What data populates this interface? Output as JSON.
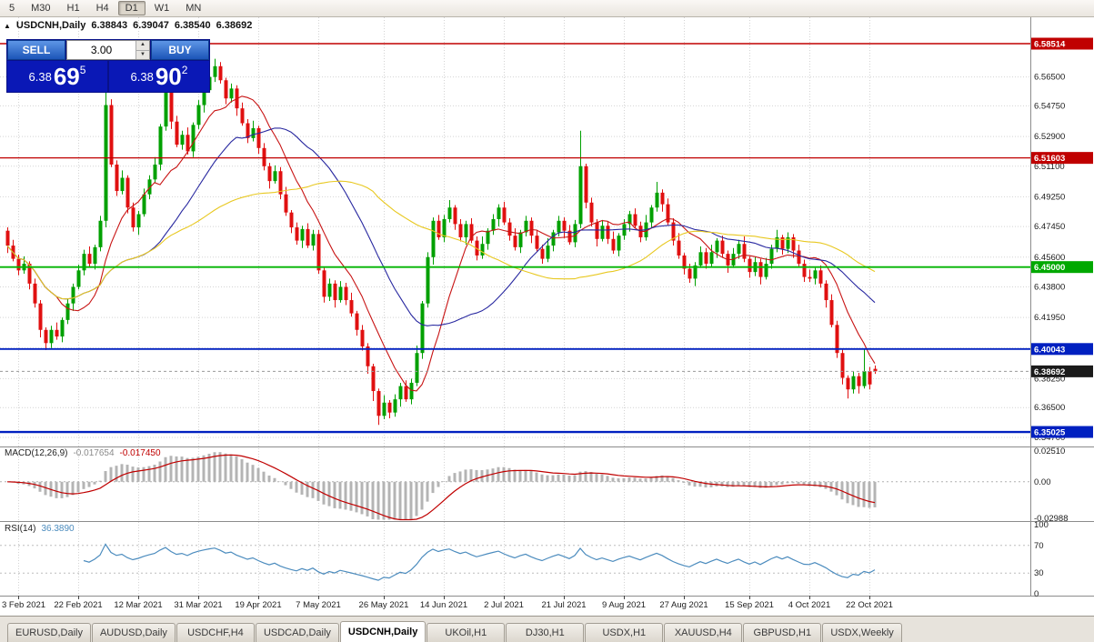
{
  "toolbar": {
    "timeframes": [
      {
        "label": "5",
        "active": false
      },
      {
        "label": "M30",
        "active": false
      },
      {
        "label": "H1",
        "active": false
      },
      {
        "label": "H4",
        "active": false
      },
      {
        "label": "D1",
        "active": true
      },
      {
        "label": "W1",
        "active": false
      },
      {
        "label": "MN",
        "active": false
      }
    ]
  },
  "header": {
    "collapse_icon": "▲",
    "symbol": "USDCNH,Daily",
    "open": "6.38843",
    "high": "6.39047",
    "low": "6.38540",
    "close": "6.38692"
  },
  "trade_widget": {
    "sell_label": "SELL",
    "buy_label": "BUY",
    "volume": "3.00",
    "bid": {
      "small": "6.38",
      "big": "69",
      "sup": "5"
    },
    "ask": {
      "small": "6.38",
      "big": "90",
      "sup": "2"
    }
  },
  "price_scale": {
    "grid": [
      {
        "v": 6.565,
        "label": "6.56500"
      },
      {
        "v": 6.5475,
        "label": "6.54750"
      },
      {
        "v": 6.529,
        "label": "6.52900"
      },
      {
        "v": 6.511,
        "label": "6.51100"
      },
      {
        "v": 6.4925,
        "label": "6.49250"
      },
      {
        "v": 6.4745,
        "label": "6.47450"
      },
      {
        "v": 6.456,
        "label": "6.45600"
      },
      {
        "v": 6.438,
        "label": "6.43800"
      },
      {
        "v": 6.4195,
        "label": "6.41950"
      },
      {
        "v": 6.401,
        "label": "6.40100"
      },
      {
        "v": 6.3825,
        "label": "6.38250"
      },
      {
        "v": 6.365,
        "label": "6.36500"
      },
      {
        "v": 6.347,
        "label": "6.34700"
      }
    ],
    "badges": [
      {
        "v": 6.58514,
        "label": "6.58514",
        "color": "#C00000"
      },
      {
        "v": 6.51603,
        "label": "6.51603",
        "color": "#C00000"
      },
      {
        "v": 6.45,
        "label": "6.45000",
        "color": "#00A800"
      },
      {
        "v": 6.40043,
        "label": "6.40043",
        "color": "#0020C0"
      },
      {
        "v": 6.35025,
        "label": "6.35025",
        "color": "#0020C0"
      }
    ],
    "current": {
      "v": 6.38692,
      "label": "6.38692",
      "color": "#1A1A1A"
    }
  },
  "macd": {
    "title": "MACD(12,26,9)",
    "main_value": "-0.017654",
    "signal_value": "-0.017450",
    "scale": [
      {
        "v": 0.0251,
        "label": "0.02510"
      },
      {
        "v": 0,
        "label": "0.00"
      },
      {
        "v": -0.02988,
        "label": "-0.02988"
      }
    ]
  },
  "rsi": {
    "title": "RSI(14)",
    "value": "36.3890",
    "levels": [
      70,
      30
    ],
    "scale": [
      {
        "v": 100,
        "label": "100"
      },
      {
        "v": 70,
        "label": "70"
      },
      {
        "v": 30,
        "label": "30"
      },
      {
        "v": 0,
        "label": "0"
      }
    ]
  },
  "time_axis": {
    "ticks": [
      {
        "i": 2,
        "label": "3 Feb 2021"
      },
      {
        "i": 13,
        "label": "22 Feb 2021"
      },
      {
        "i": 24,
        "label": "12 Mar 2021"
      },
      {
        "i": 35,
        "label": "31 Mar 2021"
      },
      {
        "i": 46,
        "label": "19 Apr 2021"
      },
      {
        "i": 57,
        "label": "7 May 2021"
      },
      {
        "i": 69,
        "label": "26 May 2021"
      },
      {
        "i": 80,
        "label": "14 Jun 2021"
      },
      {
        "i": 91,
        "label": "2 Jul 2021"
      },
      {
        "i": 102,
        "label": "21 Jul 2021"
      },
      {
        "i": 113,
        "label": "9 Aug 2021"
      },
      {
        "i": 124,
        "label": "27 Aug 2021"
      },
      {
        "i": 136,
        "label": "15 Sep 2021"
      },
      {
        "i": 147,
        "label": "4 Oct 2021"
      },
      {
        "i": 158,
        "label": "22 Oct 2021"
      }
    ]
  },
  "tabs": {
    "items": [
      {
        "label": "EURUSD,Daily",
        "active": false
      },
      {
        "label": "AUDUSD,Daily",
        "active": false
      },
      {
        "label": "USDCHF,H4",
        "active": false
      },
      {
        "label": "USDCAD,Daily",
        "active": false
      },
      {
        "label": "USDCNH,Daily",
        "active": true
      },
      {
        "label": "UKOil,H1",
        "active": false
      },
      {
        "label": "DJ30,H1",
        "active": false
      },
      {
        "label": "USDX,H1",
        "active": false
      },
      {
        "label": "XAUUSD,H4",
        "active": false
      },
      {
        "label": "GBPUSD,H1",
        "active": false
      },
      {
        "label": "USDX,Weekly",
        "active": false
      }
    ]
  },
  "chart_data": {
    "type": "candlestick",
    "symbol": "USDCNH",
    "timeframe": "Daily",
    "last_ohlc": {
      "open": 6.38843,
      "high": 6.39047,
      "low": 6.3854,
      "close": 6.38692
    },
    "up_color": "#00A000",
    "down_color": "#E01010",
    "overlays": [
      {
        "kind": "sma",
        "period": 10,
        "color": "#C81414"
      },
      {
        "kind": "sma",
        "period": 25,
        "color": "#2828A0"
      },
      {
        "kind": "sma",
        "period": 50,
        "color": "#E8C820"
      }
    ],
    "hlines": [
      {
        "value": 6.58514,
        "color": "#C00000",
        "width": 1.4
      },
      {
        "value": 6.51603,
        "color": "#C00000",
        "width": 1.2
      },
      {
        "value": 6.45,
        "color": "#00B400",
        "width": 1.8
      },
      {
        "value": 6.40043,
        "color": "#0020C0",
        "width": 1.8
      },
      {
        "value": 6.35025,
        "color": "#0020C0",
        "width": 2.4
      }
    ],
    "macd_params": [
      12,
      26,
      9
    ],
    "rsi_period": 14,
    "macd_current": [
      -0.017654,
      -0.01745
    ],
    "rsi_current": 36.389,
    "y_range": [
      6.342,
      6.595
    ],
    "ohlc": [
      [
        6.472,
        6.474,
        6.4585,
        6.463
      ],
      [
        6.463,
        6.4665,
        6.4535,
        6.455
      ],
      [
        6.455,
        6.4575,
        6.445,
        6.448
      ],
      [
        6.448,
        6.4565,
        6.446,
        6.452
      ],
      [
        6.452,
        6.4535,
        6.4365,
        6.44
      ],
      [
        6.44,
        6.443,
        6.4255,
        6.428
      ],
      [
        6.428,
        6.43,
        6.4075,
        6.412
      ],
      [
        6.412,
        6.4135,
        6.3998,
        6.404
      ],
      [
        6.404,
        6.4145,
        6.401,
        6.412
      ],
      [
        6.412,
        6.4165,
        6.406,
        6.408
      ],
      [
        6.408,
        6.4195,
        6.4045,
        6.418
      ],
      [
        6.418,
        6.431,
        6.4155,
        6.428
      ],
      [
        6.428,
        6.44,
        6.4235,
        6.438
      ],
      [
        6.438,
        6.4515,
        6.4365,
        6.448
      ],
      [
        6.448,
        6.4605,
        6.445,
        6.458
      ],
      [
        6.458,
        6.4625,
        6.45,
        6.452
      ],
      [
        6.452,
        6.4635,
        6.4485,
        6.462
      ],
      [
        6.462,
        6.481,
        6.4595,
        6.478
      ],
      [
        6.478,
        6.5655,
        6.474,
        6.548
      ],
      [
        6.548,
        6.5515,
        6.5105,
        6.512
      ],
      [
        6.512,
        6.5145,
        6.493,
        6.496
      ],
      [
        6.496,
        6.5085,
        6.494,
        6.504
      ],
      [
        6.504,
        6.5055,
        6.4825,
        6.486
      ],
      [
        6.486,
        6.489,
        6.4715,
        6.474
      ],
      [
        6.474,
        6.484,
        6.4695,
        6.482
      ],
      [
        6.482,
        6.4975,
        6.4805,
        6.494
      ],
      [
        6.494,
        6.5055,
        6.491,
        6.503
      ],
      [
        6.503,
        6.5165,
        6.501,
        6.512
      ],
      [
        6.512,
        6.5365,
        6.5085,
        6.535
      ],
      [
        6.535,
        6.5715,
        6.5325,
        6.556
      ],
      [
        6.556,
        6.558,
        6.5335,
        6.538
      ],
      [
        6.538,
        6.5415,
        6.5225,
        6.524
      ],
      [
        6.524,
        6.5325,
        6.521,
        6.53
      ],
      [
        6.53,
        6.5345,
        6.518,
        6.52
      ],
      [
        6.52,
        6.5375,
        6.5165,
        6.536
      ],
      [
        6.536,
        6.551,
        6.5335,
        6.548
      ],
      [
        6.548,
        6.559,
        6.5435,
        6.557
      ],
      [
        6.557,
        6.5685,
        6.5555,
        6.565
      ],
      [
        6.565,
        6.576,
        6.562,
        6.5715
      ],
      [
        6.5715,
        6.574,
        6.561,
        6.563
      ],
      [
        6.563,
        6.5645,
        6.5485,
        6.552
      ],
      [
        6.552,
        6.561,
        6.5495,
        6.558
      ],
      [
        6.558,
        6.56,
        6.5415,
        6.546
      ],
      [
        6.546,
        6.5495,
        6.5355,
        6.537
      ],
      [
        6.537,
        6.5395,
        6.525,
        6.528
      ],
      [
        6.528,
        6.5385,
        6.526,
        6.534
      ],
      [
        6.534,
        6.5355,
        6.5185,
        6.522
      ],
      [
        6.522,
        6.525,
        6.5085,
        6.511
      ],
      [
        6.511,
        6.513,
        6.4975,
        6.502
      ],
      [
        6.502,
        6.5115,
        6.5005,
        6.508
      ],
      [
        6.508,
        6.5105,
        6.491,
        6.494
      ],
      [
        6.494,
        6.4985,
        6.481,
        6.483
      ],
      [
        6.483,
        6.4845,
        6.4705,
        6.474
      ],
      [
        6.474,
        6.477,
        6.4635,
        6.466
      ],
      [
        6.466,
        6.475,
        6.4615,
        6.473
      ],
      [
        6.473,
        6.4765,
        6.4615,
        6.463
      ],
      [
        6.463,
        6.4725,
        6.46,
        6.47
      ],
      [
        6.47,
        6.4725,
        6.446,
        6.448
      ],
      [
        6.448,
        6.4495,
        6.4285,
        6.432
      ],
      [
        6.432,
        6.443,
        6.4295,
        6.44
      ],
      [
        6.44,
        6.442,
        6.4255,
        6.43
      ],
      [
        6.43,
        6.4415,
        6.4285,
        6.438
      ],
      [
        6.438,
        6.4405,
        6.427,
        6.43
      ],
      [
        6.43,
        6.4345,
        6.42,
        6.422
      ],
      [
        6.422,
        6.4235,
        6.4085,
        6.412
      ],
      [
        6.412,
        6.415,
        6.3995,
        6.402
      ],
      [
        6.402,
        6.404,
        6.3855,
        6.39
      ],
      [
        6.39,
        6.3915,
        6.369,
        6.375
      ],
      [
        6.375,
        6.3765,
        6.3545,
        6.36
      ],
      [
        6.36,
        6.3725,
        6.358,
        6.368
      ],
      [
        6.368,
        6.3695,
        6.3585,
        6.362
      ],
      [
        6.362,
        6.373,
        6.3595,
        6.37
      ],
      [
        6.37,
        6.38,
        6.3655,
        6.378
      ],
      [
        6.378,
        6.3815,
        6.3685,
        6.37
      ],
      [
        6.37,
        6.3825,
        6.367,
        6.38
      ],
      [
        6.38,
        6.4025,
        6.378,
        6.398
      ],
      [
        6.398,
        6.4295,
        6.3945,
        6.428
      ],
      [
        6.428,
        6.459,
        6.4255,
        6.456
      ],
      [
        6.456,
        6.48,
        6.4515,
        6.478
      ],
      [
        6.478,
        6.4815,
        6.4665,
        6.468
      ],
      [
        6.468,
        6.4815,
        6.465,
        6.479
      ],
      [
        6.479,
        6.4905,
        6.477,
        6.486
      ],
      [
        6.486,
        6.4875,
        6.4725,
        6.476
      ],
      [
        6.476,
        6.479,
        6.4655,
        6.468
      ],
      [
        6.468,
        6.478,
        6.4635,
        6.476
      ],
      [
        6.476,
        6.4795,
        6.4645,
        6.466
      ],
      [
        6.466,
        6.4685,
        6.454,
        6.457
      ],
      [
        6.457,
        6.4685,
        6.455,
        6.464
      ],
      [
        6.464,
        6.4735,
        6.4605,
        6.472
      ],
      [
        6.472,
        6.482,
        6.4695,
        6.479
      ],
      [
        6.479,
        6.488,
        6.4745,
        6.486
      ],
      [
        6.486,
        6.4895,
        6.4755,
        6.477
      ],
      [
        6.477,
        6.4795,
        6.466,
        6.469
      ],
      [
        6.469,
        6.4735,
        6.46,
        6.462
      ],
      [
        6.462,
        6.4725,
        6.4585,
        6.471
      ],
      [
        6.471,
        6.481,
        6.4685,
        6.478
      ],
      [
        6.478,
        6.48,
        6.4645,
        6.469
      ],
      [
        6.469,
        6.4725,
        6.4595,
        6.461
      ],
      [
        6.461,
        6.4635,
        6.452,
        6.455
      ],
      [
        6.455,
        6.4675,
        6.453,
        6.463
      ],
      [
        6.463,
        6.4725,
        6.4595,
        6.471
      ],
      [
        6.471,
        6.481,
        6.4685,
        6.478
      ],
      [
        6.478,
        6.48,
        6.4675,
        6.472
      ],
      [
        6.472,
        6.4755,
        6.4635,
        6.465
      ],
      [
        6.465,
        6.4785,
        6.462,
        6.476
      ],
      [
        6.476,
        6.5325,
        6.4735,
        6.511
      ],
      [
        6.511,
        6.5125,
        6.4855,
        6.489
      ],
      [
        6.489,
        6.492,
        6.4745,
        6.477
      ],
      [
        6.477,
        6.479,
        6.4625,
        6.467
      ],
      [
        6.467,
        6.4785,
        6.4655,
        6.475
      ],
      [
        6.475,
        6.4775,
        6.464,
        6.467
      ],
      [
        6.467,
        6.4715,
        6.458,
        6.46
      ],
      [
        6.46,
        6.4705,
        6.4565,
        6.469
      ],
      [
        6.469,
        6.479,
        6.4665,
        6.476
      ],
      [
        6.476,
        6.484,
        6.4715,
        6.482
      ],
      [
        6.482,
        6.4855,
        6.4735,
        6.475
      ],
      [
        6.475,
        6.4775,
        6.465,
        6.468
      ],
      [
        6.468,
        6.4815,
        6.466,
        6.477
      ],
      [
        6.477,
        6.4875,
        6.4735,
        6.486
      ],
      [
        6.486,
        6.5015,
        6.4835,
        6.495
      ],
      [
        6.495,
        6.497,
        6.4835,
        6.488
      ],
      [
        6.488,
        6.4915,
        6.4755,
        6.477
      ],
      [
        6.477,
        6.4795,
        6.463,
        6.466
      ],
      [
        6.466,
        6.4705,
        6.455,
        6.457
      ],
      [
        6.457,
        6.4585,
        6.4455,
        6.449
      ],
      [
        6.449,
        6.452,
        6.4405,
        6.443
      ],
      [
        6.443,
        6.453,
        6.4385,
        6.451
      ],
      [
        6.451,
        6.4625,
        6.4495,
        6.459
      ],
      [
        6.459,
        6.4615,
        6.449,
        6.452
      ],
      [
        6.452,
        6.4635,
        6.45,
        6.459
      ],
      [
        6.459,
        6.4675,
        6.4555,
        6.466
      ],
      [
        6.466,
        6.469,
        6.4555,
        6.458
      ],
      [
        6.458,
        6.46,
        6.4465,
        6.451
      ],
      [
        6.451,
        6.4615,
        6.4495,
        6.458
      ],
      [
        6.458,
        6.4665,
        6.455,
        6.464
      ],
      [
        6.464,
        6.4685,
        6.453,
        6.455
      ],
      [
        6.455,
        6.4565,
        6.4435,
        6.447
      ],
      [
        6.447,
        6.456,
        6.4445,
        6.453
      ],
      [
        6.453,
        6.455,
        6.4395,
        6.444
      ],
      [
        6.444,
        6.4555,
        6.4425,
        6.452
      ],
      [
        6.452,
        6.4635,
        6.449,
        6.461
      ],
      [
        6.461,
        6.4725,
        6.459,
        6.468
      ],
      [
        6.468,
        6.4695,
        6.4575,
        6.461
      ],
      [
        6.461,
        6.471,
        6.4585,
        6.468
      ],
      [
        6.468,
        6.47,
        6.4555,
        6.46
      ],
      [
        6.46,
        6.4635,
        6.4505,
        6.452
      ],
      [
        6.452,
        6.4545,
        6.441,
        6.444
      ],
      [
        6.444,
        6.4485,
        6.441,
        6.443
      ],
      [
        6.443,
        6.4495,
        6.4395,
        6.448
      ],
      [
        6.448,
        6.451,
        6.4375,
        6.44
      ],
      [
        6.44,
        6.442,
        6.4255,
        6.43
      ],
      [
        6.43,
        6.4335,
        6.4135,
        6.415
      ],
      [
        6.415,
        6.4175,
        6.395,
        6.398
      ],
      [
        6.398,
        6.4,
        6.379,
        6.383
      ],
      [
        6.383,
        6.3845,
        6.3705,
        6.376
      ],
      [
        6.376,
        6.387,
        6.3735,
        6.384
      ],
      [
        6.384,
        6.386,
        6.3735,
        6.378
      ],
      [
        6.378,
        6.4005,
        6.3765,
        6.387
      ],
      [
        6.387,
        6.3895,
        6.376,
        6.379
      ],
      [
        6.38843,
        6.39047,
        6.3854,
        6.38692
      ]
    ]
  }
}
